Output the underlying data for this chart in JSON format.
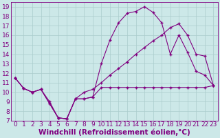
{
  "xlabel": "Windchill (Refroidissement éolien,°C)",
  "background_color": "#cce8e8",
  "line_color": "#800080",
  "grid_color": "#aacccc",
  "xlim": [
    -0.5,
    23.5
  ],
  "ylim": [
    7,
    19.5
  ],
  "xticks": [
    0,
    1,
    2,
    3,
    4,
    5,
    6,
    7,
    8,
    9,
    10,
    11,
    12,
    13,
    14,
    15,
    16,
    17,
    18,
    19,
    20,
    21,
    22,
    23
  ],
  "yticks": [
    7,
    8,
    9,
    10,
    11,
    12,
    13,
    14,
    15,
    16,
    17,
    18,
    19
  ],
  "line1_x": [
    0,
    1,
    2,
    3,
    4,
    5,
    6,
    7,
    8,
    9,
    10,
    11,
    12,
    13,
    14,
    15,
    16,
    17,
    18,
    19,
    20,
    21,
    22,
    23
  ],
  "line1_y": [
    11.5,
    10.4,
    10.0,
    10.3,
    9.0,
    7.3,
    7.2,
    9.3,
    9.3,
    9.5,
    10.5,
    10.5,
    10.5,
    10.5,
    10.5,
    10.5,
    10.5,
    10.5,
    10.5,
    10.5,
    10.5,
    10.5,
    10.5,
    10.7
  ],
  "line2_x": [
    0,
    1,
    2,
    3,
    4,
    5,
    6,
    7,
    8,
    9,
    10,
    11,
    12,
    13,
    14,
    15,
    16,
    17,
    18,
    19,
    20,
    21,
    22,
    23
  ],
  "line2_y": [
    11.5,
    10.4,
    10.0,
    10.3,
    8.8,
    7.3,
    7.2,
    9.3,
    9.3,
    9.5,
    13.0,
    15.5,
    17.3,
    18.3,
    18.5,
    19.0,
    18.4,
    17.3,
    14.0,
    16.0,
    14.2,
    12.2,
    11.8,
    10.7
  ],
  "line3_x": [
    0,
    1,
    2,
    3,
    4,
    5,
    6,
    7,
    8,
    9,
    10,
    11,
    12,
    13,
    14,
    15,
    16,
    17,
    18,
    19,
    20,
    21,
    22,
    23
  ],
  "line3_y": [
    11.5,
    10.4,
    10.0,
    10.3,
    8.8,
    7.3,
    7.2,
    9.3,
    10.0,
    10.3,
    11.0,
    11.8,
    12.5,
    13.2,
    14.0,
    14.7,
    15.4,
    16.0,
    16.8,
    17.2,
    16.0,
    14.0,
    13.8,
    10.7
  ],
  "font_color": "#800080",
  "tick_fontsize": 6.5,
  "label_fontsize": 7.5
}
